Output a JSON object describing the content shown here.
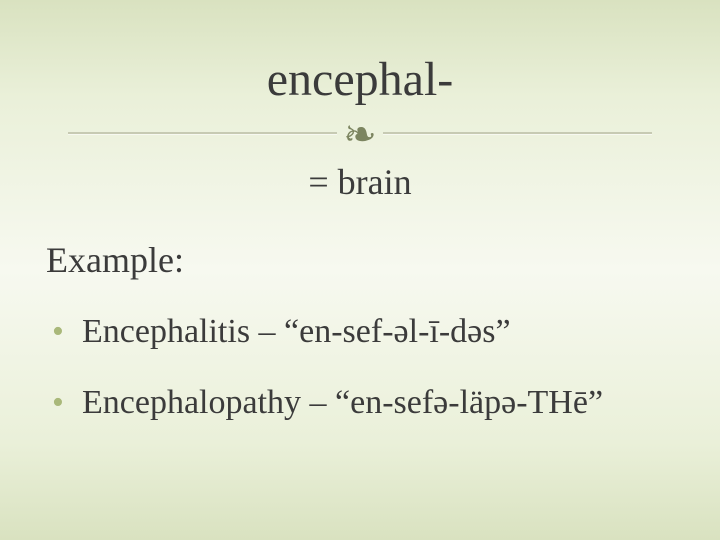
{
  "slide": {
    "background_gradient": [
      "#d9e2c0",
      "#eaf0d9",
      "#f7f9f0",
      "#eaf0d9",
      "#d9e2c0"
    ],
    "text_color": "#3b3b3b",
    "bullet_color": "#a9b87a",
    "divider_color": "rgba(128,128,100,0.35)",
    "flourish_color": "#7c8560",
    "flourish_glyph": "❧",
    "title": "encephal-",
    "title_fontsize": 48,
    "subtitle": "= brain",
    "subtitle_fontsize": 36,
    "section_label": "Example:",
    "section_fontsize": 36,
    "bullets": [
      "Encephalitis – “en-sef-əl-ī-dəs”",
      "Encephalopathy – “en-sefə-läpə-THē”"
    ],
    "bullet_fontsize": 34
  }
}
